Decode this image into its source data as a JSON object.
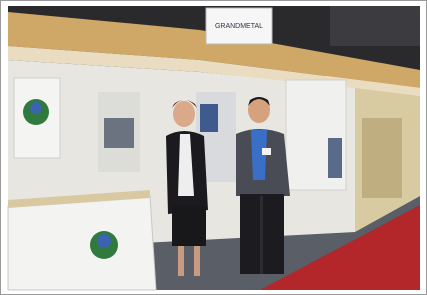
{
  "sign": {
    "label": "GRANDMETAL"
  }
}
